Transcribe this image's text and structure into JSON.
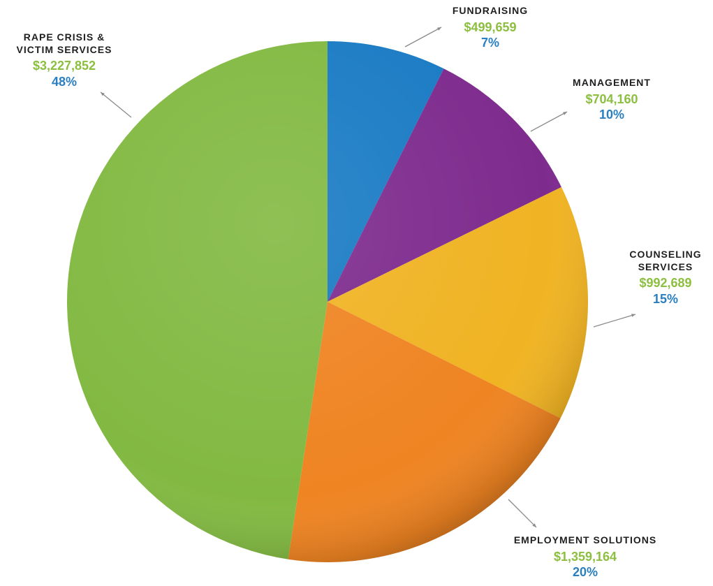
{
  "colors": {
    "amount_text": "#8cbf3f",
    "percent_text": "#2a7fc1",
    "leader": "#8a8a8a"
  },
  "chart_data": {
    "type": "pie",
    "slices": [
      {
        "id": "fundraising",
        "label_lines": [
          "FUNDRAISING"
        ],
        "value": 499659,
        "amount": "$499,659",
        "percent": "7%",
        "color": "#1a7bc4"
      },
      {
        "id": "management",
        "label_lines": [
          "MANAGEMENT"
        ],
        "value": 704160,
        "amount": "$704,160",
        "percent": "10%",
        "color": "#7e2b8e"
      },
      {
        "id": "counseling",
        "label_lines": [
          "COUNSELING",
          "SERVICES"
        ],
        "value": 992689,
        "amount": "$992,689",
        "percent": "15%",
        "color": "#f0b323"
      },
      {
        "id": "employment",
        "label_lines": [
          "EMPLOYMENT SOLUTIONS"
        ],
        "value": 1359164,
        "amount": "$1,359,164",
        "percent": "20%",
        "color": "#ef8422"
      },
      {
        "id": "rape_crisis",
        "label_lines": [
          "RAPE CRISIS &",
          "VICTIM SERVICES"
        ],
        "value": 3227852,
        "amount": "$3,227,852",
        "percent": "48%",
        "color": "#82b942"
      }
    ]
  }
}
